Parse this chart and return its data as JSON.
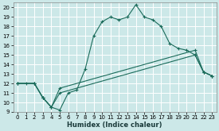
{
  "xlabel": "Humidex (Indice chaleur)",
  "bg_color": "#cce8e8",
  "grid_color": "#ffffff",
  "line_color": "#1a6b5a",
  "xlim": [
    -0.5,
    23.5
  ],
  "ylim": [
    9,
    20.5
  ],
  "xticks": [
    0,
    1,
    2,
    3,
    4,
    5,
    6,
    7,
    8,
    9,
    10,
    11,
    12,
    13,
    14,
    15,
    16,
    17,
    18,
    19,
    20,
    21,
    22,
    23
  ],
  "yticks": [
    9,
    10,
    11,
    12,
    13,
    14,
    15,
    16,
    17,
    18,
    19,
    20
  ],
  "line1_x": [
    0,
    1,
    2,
    3,
    4,
    5,
    6,
    7,
    8,
    9,
    10,
    11,
    12,
    13,
    14,
    15,
    16,
    17,
    18,
    19,
    20,
    21,
    22,
    23
  ],
  "line1_y": [
    12,
    12,
    12,
    10.5,
    9.5,
    9.2,
    11.0,
    11.3,
    13.5,
    17.0,
    18.5,
    19.0,
    18.7,
    19.0,
    20.3,
    19.0,
    18.7,
    18.0,
    16.2,
    15.7,
    15.5,
    15.0,
    13.2,
    12.8
  ],
  "line2_x": [
    0,
    2,
    3,
    4,
    5,
    21,
    22,
    23
  ],
  "line2_y": [
    12,
    12,
    10.5,
    9.5,
    11.0,
    15.0,
    13.2,
    12.8
  ],
  "line3_x": [
    0,
    2,
    3,
    4,
    5,
    21,
    22,
    23
  ],
  "line3_y": [
    12,
    12,
    10.5,
    9.5,
    11.5,
    15.5,
    13.2,
    12.8
  ]
}
